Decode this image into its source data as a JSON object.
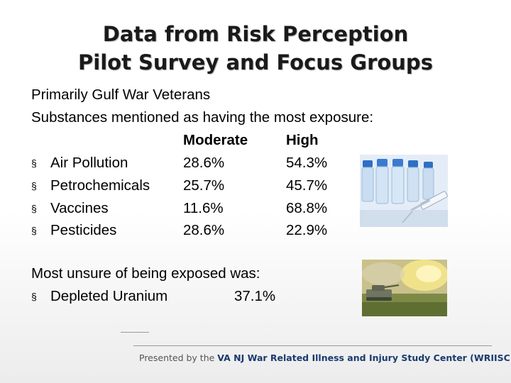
{
  "title": {
    "line1": "Data from Risk Perception",
    "line2": "Pilot Survey and Focus Groups"
  },
  "intro": {
    "line1": "Primarily Gulf War Veterans",
    "line2": "Substances mentioned as having the most exposure:"
  },
  "table": {
    "headers": {
      "moderate": "Moderate",
      "high": "High"
    },
    "bullet": "§",
    "rows": [
      {
        "name": "Air Pollution",
        "moderate": "28.6%",
        "high": "54.3%"
      },
      {
        "name": "Petrochemicals",
        "moderate": "25.7%",
        "high": "45.7%"
      },
      {
        "name": "Vaccines",
        "moderate": "11.6%",
        "high": "68.8%"
      },
      {
        "name": "Pesticides",
        "moderate": "28.6%",
        "high": "22.9%"
      }
    ]
  },
  "unsure": {
    "heading": "Most unsure of being exposed was:",
    "bullet": "§",
    "name": "Depleted Uranium",
    "value": "37.1%"
  },
  "footer": {
    "lead": "Presented by the ",
    "org": "VA NJ War Related Illness and Injury Study Center (WRIISC)"
  },
  "colors": {
    "footer_org": "#1a3a6e",
    "title_shadow": "#b5b5b5"
  }
}
